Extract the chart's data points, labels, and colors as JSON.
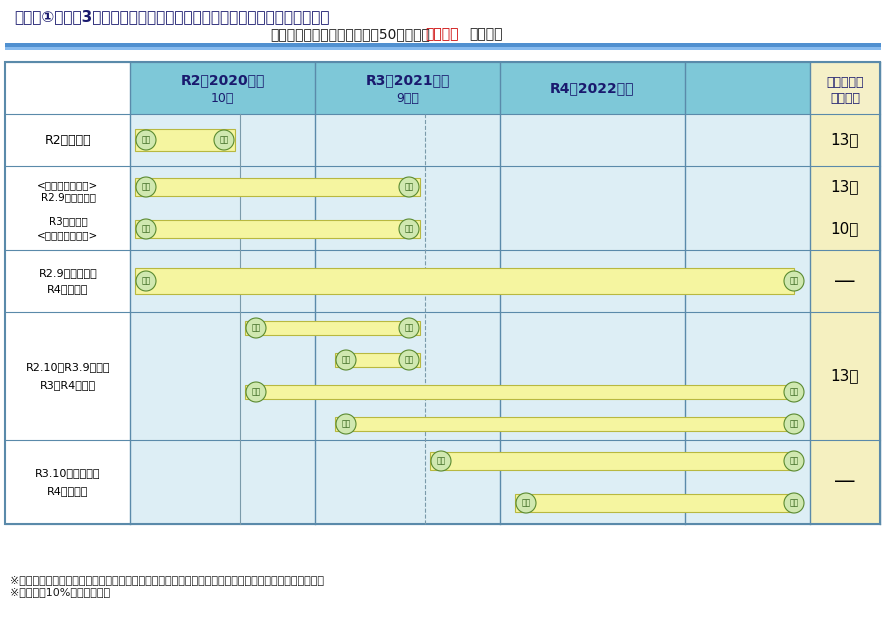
{
  "title_main": "【参考①】令和3年度税制改正時点における住宅ローン減税の適用について",
  "title_sub_prefix": "（契約と入居のタイミング・50㎡以上の",
  "title_sub_red": "注文住宅",
  "title_sub_suffix": "の場合）",
  "col_headers": [
    "R2（2020年）",
    "R3（2021年）",
    "R4（2022年）",
    "適用される\n控除期間"
  ],
  "col_subheaders": [
    "10月",
    "9月末",
    "",
    ""
  ],
  "bg_color": "#ffffff",
  "header_bg": "#7ec8d8",
  "header_last_bg": "#f5f0c8",
  "row_cell_bg": "#ddeef5",
  "result_cell_bg": "#f5f0c0",
  "bar_color": "#f5f5a0",
  "bar_outline": "#b8b840",
  "circle_fill": "#d0e8b0",
  "circle_edge": "#5a8a30",
  "circle_text": "#2a5a10",
  "title_color": "#1a1a6e",
  "grid_color": "#5a8aaa",
  "divider_color": "#7a9aaa",
  "footer_text": "※住宅取得等に係る契約の時期（契約）とその契約に係る入居の時期（入居）に応じた適用可否の組合せ\n※消費税率10%の適用が前提",
  "title_bar1": "#5090d0",
  "title_bar2": "#88bbee"
}
